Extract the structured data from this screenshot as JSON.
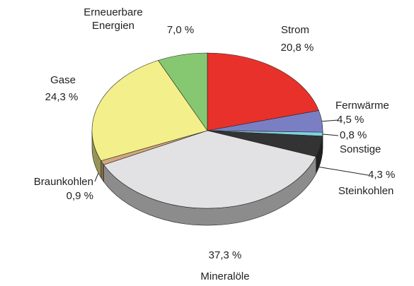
{
  "chart_data": {
    "type": "pie",
    "categories": [
      "Strom",
      "Fernwärme",
      "Sonstige",
      "Steinkohlen",
      "Mineralöle",
      "Braunkohlen",
      "Gase",
      "Erneuerbare Energien"
    ],
    "values": [
      20.8,
      4.5,
      0.8,
      4.3,
      37.3,
      0.9,
      24.3,
      7.0
    ],
    "value_labels": [
      "20,8 %",
      "4,5 %",
      "0,8 %",
      "4,3 %",
      "37,3 %",
      "0,9 %",
      "24,3 %",
      "7,0 %"
    ],
    "colors": [
      "#e8312a",
      "#7a7fc4",
      "#7fd3e0",
      "#333333",
      "#e2e2e4",
      "#d2a77c",
      "#f3ef8a",
      "#86c872"
    ]
  }
}
